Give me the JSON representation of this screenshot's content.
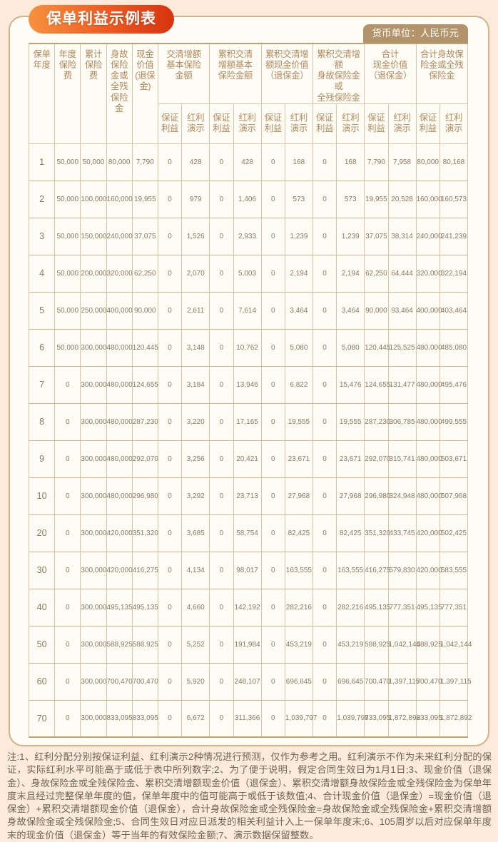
{
  "title": "保单利益示例表",
  "currency_note": "货币单位：人民币元",
  "table": {
    "header": {
      "policy_year": "保单\n年度",
      "annual_premium": "年度\n保险\n费",
      "cumulative_premium": "累计\n保险\n费",
      "death_or_disability_benefit": "身故\n保险\n金或\n全残\n保险\n金",
      "cash_value": "现金\n价值\n(退保\n金)",
      "groups": [
        "交清增额\n基本保险\n金额",
        "累积交清\n增额基本\n保险金额",
        "累积交清增\n额现金价值\n（退保金）",
        "累积交清增额\n身故保险金或\n全残保险金",
        "合计\n现金价值\n（退保金）",
        "合计身故保\n险金或全残\n保险金"
      ],
      "sub_guaranteed": "保证\n利益",
      "sub_dividend": "红利\n演示"
    },
    "rows": [
      [
        "1",
        "50,000",
        "50,000",
        "80,000",
        "7,790",
        "0",
        "428",
        "0",
        "428",
        "0",
        "168",
        "0",
        "168",
        "7,790",
        "7,958",
        "80,000",
        "80,168"
      ],
      [
        "2",
        "50,000",
        "100,000",
        "160,000",
        "19,955",
        "0",
        "979",
        "0",
        "1,406",
        "0",
        "573",
        "0",
        "573",
        "19,955",
        "20,528",
        "160,000",
        "160,573"
      ],
      [
        "3",
        "50,000",
        "150,000",
        "240,000",
        "37,075",
        "0",
        "1,526",
        "0",
        "2,933",
        "0",
        "1,239",
        "0",
        "1,239",
        "37,075",
        "38,314",
        "240,000",
        "241,239"
      ],
      [
        "4",
        "50,000",
        "200,000",
        "320,000",
        "62,250",
        "0",
        "2,070",
        "0",
        "5,003",
        "0",
        "2,194",
        "0",
        "2,194",
        "62,250",
        "64,444",
        "320,000",
        "322,194"
      ],
      [
        "5",
        "50,000",
        "250,000",
        "400,000",
        "90,000",
        "0",
        "2,611",
        "0",
        "7,614",
        "0",
        "3,464",
        "0",
        "3,464",
        "90,000",
        "93,464",
        "400,000",
        "403,464"
      ],
      [
        "6",
        "50,000",
        "300,000",
        "480,000",
        "120,445",
        "0",
        "3,148",
        "0",
        "10,762",
        "0",
        "5,080",
        "0",
        "5,080",
        "120,445",
        "125,525",
        "480,000",
        "485,080"
      ],
      [
        "7",
        "0",
        "300,000",
        "480,000",
        "124,655",
        "0",
        "3,184",
        "0",
        "13,946",
        "0",
        "6,822",
        "0",
        "15,476",
        "124,655",
        "131,477",
        "480,000",
        "495,476"
      ],
      [
        "8",
        "0",
        "300,000",
        "480,000",
        "287,230",
        "0",
        "3,220",
        "0",
        "17,165",
        "0",
        "19,555",
        "0",
        "19,555",
        "287,230",
        "306,785",
        "480,000",
        "499,555"
      ],
      [
        "9",
        "0",
        "300,000",
        "480,000",
        "292,070",
        "0",
        "3,256",
        "0",
        "20,421",
        "0",
        "23,671",
        "0",
        "23,671",
        "292,070",
        "315,741",
        "480,000",
        "503,671"
      ],
      [
        "10",
        "0",
        "300,000",
        "480,000",
        "296,980",
        "0",
        "3,292",
        "0",
        "23,713",
        "0",
        "27,968",
        "0",
        "27,968",
        "296,980",
        "324,948",
        "480,000",
        "507,968"
      ],
      [
        "20",
        "0",
        "300,000",
        "420,000",
        "351,320",
        "0",
        "3,685",
        "0",
        "58,754",
        "0",
        "82,425",
        "0",
        "82,425",
        "351,320",
        "433,745",
        "420,000",
        "502,425"
      ],
      [
        "30",
        "0",
        "300,000",
        "420,000",
        "416,275",
        "0",
        "4,134",
        "0",
        "98,017",
        "0",
        "163,555",
        "0",
        "163,555",
        "416,275",
        "579,830",
        "420,000",
        "583,555"
      ],
      [
        "40",
        "0",
        "300,000",
        "495,135",
        "495,135",
        "0",
        "4,660",
        "0",
        "142,192",
        "0",
        "282,216",
        "0",
        "282,216",
        "495,135",
        "777,351",
        "495,135",
        "777,351"
      ],
      [
        "50",
        "0",
        "300,000",
        "588,925",
        "588,925",
        "0",
        "5,252",
        "0",
        "191,984",
        "0",
        "453,219",
        "0",
        "453,219",
        "588,925",
        "1,042,144",
        "588,925",
        "1,042,144"
      ],
      [
        "60",
        "0",
        "300,000",
        "700,470",
        "700,470",
        "0",
        "5,920",
        "0",
        "248,107",
        "0",
        "696,645",
        "0",
        "696,645",
        "700,470",
        "1,397,115",
        "700,470",
        "1,397,115"
      ],
      [
        "70",
        "0",
        "300,000",
        "833,095",
        "833,095",
        "0",
        "6,672",
        "0",
        "311,366",
        "0",
        "1,039,797",
        "0",
        "1,039,797",
        "833,095",
        "1,872,892",
        "833,095",
        "1,872,892"
      ]
    ]
  },
  "notes": "注:1、红利分配分别按保证利益、红利演示2种情况进行预测，仅作为参考之用。红利演示不作为未来红利分配的保证，实际红利水平可能高于或低于表中所列数字;2、为了便于说明，假定合同生效日为1月1日;3、现金价值（退保金）、身故保险金或全残保险金、累积交清增额现金价值（退保金）、累积交清增额身故保险金或全残保险金为保单年度末且经过完整保单年度的值，保单年度中的值可能高于或低于该数值;4、合计现金价值（退保金）=现金价值（退保金）+累积交清增额现金价值（退保金），合计身故保险金或全残保险金=身故保险金或全残保险金+累积交清增额身故保险金或全残保险金;5、合同生效日对应日派发的相关利益计入上一保单年度末;6、105周岁以后对应保单年度末的现金价值（退保金）等于当年的有效保险金额;7、演示数据保留整数。"
}
